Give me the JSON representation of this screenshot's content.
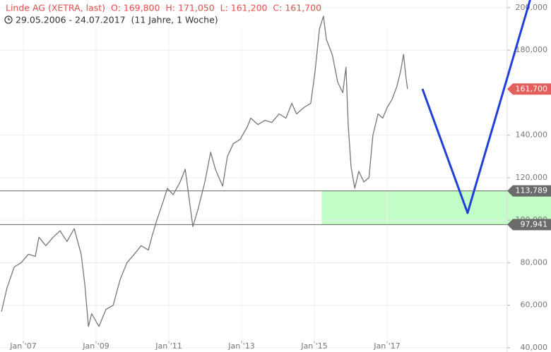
{
  "chart_data": {
    "type": "line",
    "title": "Linde AG (XETRA, last)  O: 169,800  H: 171,050  L: 161,200  C: 161,700",
    "subtitle": "29.05.2006 - 24.07.2017  (11 Jahre, 1 Woche)",
    "xlim": [
      2006.36,
      2020.3
    ],
    "ylim": [
      38.0,
      203.6
    ],
    "xticks": [
      {
        "value": 2007,
        "label": "Jan '07"
      },
      {
        "value": 2009,
        "label": "Jan '09"
      },
      {
        "value": 2011,
        "label": "Jan '11"
      },
      {
        "value": 2013,
        "label": "Jan '13"
      },
      {
        "value": 2015,
        "label": "Jan '15"
      },
      {
        "value": 2017,
        "label": "Jan '17"
      }
    ],
    "yticks": [
      {
        "value": 40,
        "label": "40,000"
      },
      {
        "value": 60,
        "label": "60,000"
      },
      {
        "value": 80,
        "label": "80,000"
      },
      {
        "value": 100,
        "label": "100,000"
      },
      {
        "value": 120,
        "label": "120,000"
      },
      {
        "value": 140,
        "label": "140,000"
      },
      {
        "value": 180,
        "label": "180,000"
      },
      {
        "value": 200,
        "label": "200,000"
      }
    ],
    "grid": true,
    "series": [
      {
        "color": "#7b7574",
        "x": [
          2006.4,
          2006.55,
          2006.75,
          2006.94,
          2007.14,
          2007.33,
          2007.43,
          2007.62,
          2007.82,
          2008.01,
          2008.2,
          2008.4,
          2008.59,
          2008.69,
          2008.79,
          2008.88,
          2009.08,
          2009.27,
          2009.47,
          2009.66,
          2009.85,
          2010.05,
          2010.24,
          2010.44,
          2010.53,
          2010.67,
          2010.83,
          2010.96,
          2011.12,
          2011.31,
          2011.45,
          2011.56,
          2011.66,
          2011.8,
          2011.99,
          2012.15,
          2012.28,
          2012.48,
          2012.61,
          2012.77,
          2012.96,
          2013.16,
          2013.25,
          2013.45,
          2013.64,
          2013.83,
          2014.03,
          2014.22,
          2014.38,
          2014.51,
          2014.71,
          2014.9,
          2015.02,
          2015.14,
          2015.25,
          2015.33,
          2015.49,
          2015.64,
          2015.78,
          2015.87,
          2015.93,
          2016.01,
          2016.11,
          2016.22,
          2016.36,
          2016.5,
          2016.61,
          2016.75,
          2016.88,
          2017.0,
          2017.14,
          2017.27,
          2017.37,
          2017.45,
          2017.52,
          2017.56
        ],
        "values": [
          57,
          68,
          78,
          80,
          84,
          83,
          92,
          88,
          92,
          95,
          90,
          96,
          84,
          70,
          50,
          56,
          50,
          58,
          60,
          72,
          80,
          84,
          88,
          86,
          92,
          100,
          108,
          115,
          112,
          118,
          124,
          110,
          97,
          105,
          118,
          132,
          124,
          116,
          130,
          136,
          138,
          144,
          148,
          145,
          147,
          146,
          150,
          148,
          155,
          150,
          153,
          155,
          170,
          190,
          196,
          185,
          178,
          165,
          160,
          172,
          145,
          125,
          115,
          123,
          118,
          120,
          140,
          150,
          148,
          153,
          157,
          163,
          170,
          178,
          167,
          161.7
        ]
      },
      {
        "color": "#1f3fd9",
        "x": [
          2017.97,
          2019.21,
          2020.93
        ],
        "values": [
          161.8,
          103.4,
          203.6
        ]
      }
    ],
    "levels": [
      {
        "value": 113.789,
        "label": "113,789"
      },
      {
        "value": 97.941,
        "label": "97,941"
      }
    ],
    "zone_start": 2015.2,
    "zone_color": "#c2fcc6",
    "last_price": {
      "value": 161.7,
      "label": "161,700"
    }
  }
}
